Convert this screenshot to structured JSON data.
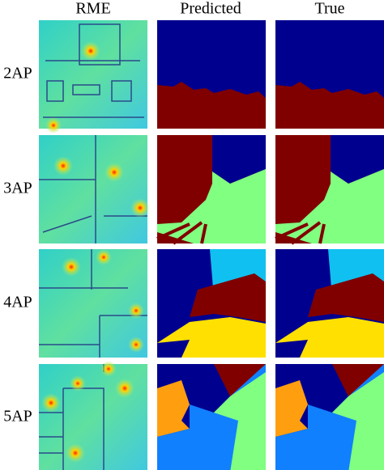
{
  "columns": [
    "RME",
    "Predicted",
    "True"
  ],
  "rows": [
    "2AP",
    "3AP",
    "4AP",
    "5AP"
  ]
}
